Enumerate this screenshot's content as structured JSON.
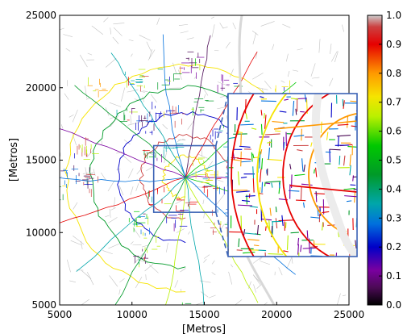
{
  "chart_data": {
    "type": "heatmap",
    "description_kind": "street-network map colored by normalized value",
    "xlabel": "[Metros]",
    "ylabel": "[Metros]",
    "xlim": [
      5000,
      25000
    ],
    "ylim": [
      5000,
      25000
    ],
    "x_ticks": [
      5000,
      10000,
      15000,
      20000,
      25000
    ],
    "y_ticks": [
      5000,
      10000,
      15000,
      20000,
      25000
    ],
    "grid": false,
    "colorbar": {
      "colormap": "nipy_spectral",
      "range": [
        0.0,
        1.0
      ],
      "ticks": [
        "0.0",
        "0.1",
        "0.2",
        "0.3",
        "0.4",
        "0.5",
        "0.6",
        "0.7",
        "0.8",
        "0.9",
        "1.0"
      ]
    },
    "zoom_region": {
      "x_range": [
        11500,
        15800
      ],
      "y_range": [
        11400,
        16000
      ],
      "inset_placement": "right",
      "connector_style": "dashed"
    },
    "colors": {
      "frame": "#3a62b5",
      "background": "#ffffff",
      "minor_streets": "#9a9a9a"
    }
  }
}
